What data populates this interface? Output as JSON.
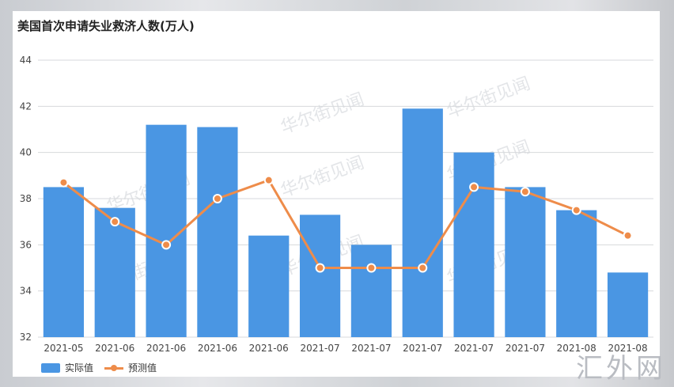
{
  "chart_data": {
    "type": "bar",
    "title": "美国首次申请失业救济人数(万人)",
    "categories": [
      "2021-05",
      "2021-06",
      "2021-06",
      "2021-06",
      "2021-06",
      "2021-07",
      "2021-07",
      "2021-07",
      "2021-07",
      "2021-07",
      "2021-08",
      "2021-08"
    ],
    "series": [
      {
        "name": "实际值",
        "type": "bar",
        "color": "#4a96e3",
        "values": [
          38.5,
          37.6,
          41.2,
          41.1,
          36.4,
          37.3,
          36.0,
          41.9,
          40.0,
          38.5,
          37.5,
          34.8
        ]
      },
      {
        "name": "预测值",
        "type": "line",
        "color": "#ee8c4a",
        "values": [
          38.7,
          37.0,
          36.0,
          38.0,
          38.8,
          35.0,
          35.0,
          35.0,
          38.5,
          38.3,
          37.5,
          36.4
        ]
      }
    ],
    "ylim": [
      32,
      44
    ],
    "yticks": [
      32,
      34,
      36,
      38,
      40,
      42,
      44
    ],
    "grid": true,
    "legend_position": "bottom-left"
  },
  "watermark": "华尔街见闻",
  "corner_mark": "汇外网"
}
